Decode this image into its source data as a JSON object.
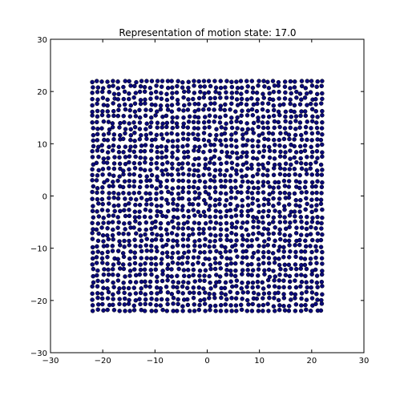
{
  "chart_data": {
    "type": "scatter",
    "title": "Representation of motion state: 17.0",
    "xlabel": "",
    "ylabel": "",
    "xlim": [
      -30,
      30
    ],
    "ylim": [
      -30,
      30
    ],
    "xticks": [
      -30,
      -20,
      -10,
      0,
      10,
      20,
      30
    ],
    "yticks": [
      -30,
      -20,
      -10,
      0,
      10,
      20,
      30
    ],
    "xtick_labels": [
      "−30",
      "−20",
      "−10",
      "0",
      "10",
      "20",
      "30"
    ],
    "ytick_labels": [
      "−30",
      "−20",
      "−10",
      "0",
      "10",
      "20",
      "30"
    ],
    "grid": false,
    "legend": "none",
    "marker_color": "#0a0a7a",
    "series": [
      {
        "point_cloud": {
          "description_of_layout": "approximately regular lattice of particles filling the square region",
          "x_range": [
            -22,
            22
          ],
          "y_range": [
            -22,
            22
          ],
          "columns": 44,
          "rows": 40,
          "count": 1760
        }
      }
    ]
  }
}
